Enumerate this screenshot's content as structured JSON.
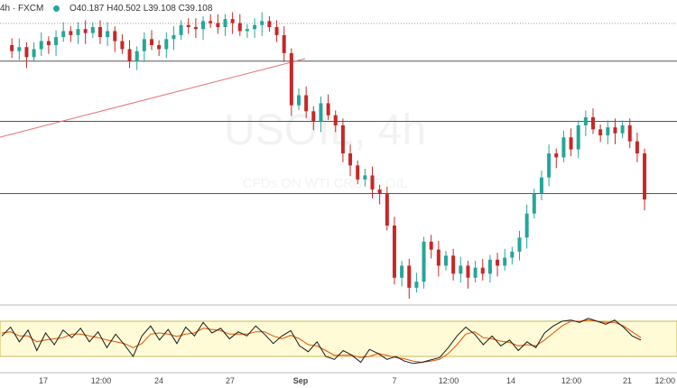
{
  "header": {
    "interval": "4h",
    "source": "FXCM",
    "open": "O40.187",
    "high": "H40.502",
    "low": "L39.108",
    "close": "C39.108"
  },
  "watermark": {
    "symbol": "USOIL, 4h",
    "description": "CFDs ON WTI CRUDE OIL"
  },
  "x_axis": {
    "labels": [
      {
        "text": "17",
        "bold": false
      },
      {
        "text": "12:00",
        "bold": false
      },
      {
        "text": "24",
        "bold": false
      },
      {
        "text": "27",
        "bold": false
      },
      {
        "text": "Sep",
        "bold": true
      },
      {
        "text": "7",
        "bold": false
      },
      {
        "text": "12:00",
        "bold": false
      },
      {
        "text": "14",
        "bold": false
      },
      {
        "text": "12:00",
        "bold": false
      },
      {
        "text": "21",
        "bold": false
      },
      {
        "text": "12:00",
        "bold": false
      }
    ]
  },
  "colors": {
    "up": "#26a69a",
    "down": "#c62828",
    "trendline": "#e57373",
    "hline": "#555555",
    "stoch_k": "#1a1a1a",
    "stoch_d": "#e65100",
    "stoch_band": "#fffbd6",
    "stoch_band_border": "#c8b94a"
  },
  "chart_data": {
    "type": "candlestick",
    "symbol": "USOIL",
    "interval": "4h",
    "price_path": [
      43.1,
      42.95,
      43.05,
      42.8,
      43.0,
      43.2,
      43.1,
      43.3,
      43.45,
      43.35,
      43.5,
      43.4,
      43.55,
      43.3,
      43.45,
      43.2,
      43.0,
      42.7,
      42.95,
      43.25,
      43.1,
      43.0,
      43.25,
      43.35,
      43.6,
      43.55,
      43.5,
      43.7,
      43.65,
      43.55,
      43.75,
      43.65,
      43.45,
      43.5,
      43.6,
      43.7,
      43.55,
      43.35,
      42.9,
      41.6,
      41.85,
      41.45,
      41.2,
      41.65,
      41.35,
      41.1,
      40.4,
      40.1,
      39.75,
      39.85,
      39.5,
      39.4,
      38.6,
      37.3,
      37.6,
      37.05,
      37.2,
      38.2,
      38.0,
      37.6,
      37.85,
      37.4,
      37.6,
      37.3,
      37.55,
      37.4,
      37.75,
      37.6,
      37.8,
      37.95,
      38.3,
      38.9,
      39.4,
      39.8,
      40.4,
      40.3,
      40.8,
      40.5,
      41.1,
      41.3,
      41.0,
      40.85,
      41.05,
      40.9,
      41.1,
      40.7,
      40.4,
      39.25
    ],
    "horizontal_levels": [
      42.7,
      41.2,
      39.4
    ],
    "trendline": "rising support line, drawn from early in the series toward the 27th",
    "stochastic": {
      "k": [
        55,
        70,
        45,
        65,
        30,
        60,
        40,
        65,
        52,
        68,
        45,
        62,
        35,
        58,
        40,
        20,
        55,
        72,
        48,
        66,
        42,
        70,
        55,
        78,
        60,
        68,
        50,
        62,
        55,
        72,
        58,
        42,
        55,
        64,
        38,
        28,
        45,
        20,
        15,
        30,
        22,
        10,
        32,
        25,
        15,
        20,
        12,
        8,
        10,
        14,
        18,
        35,
        55,
        70,
        58,
        40,
        55,
        38,
        48,
        30,
        45,
        35,
        60,
        72,
        80,
        82,
        78,
        85,
        80,
        75,
        82,
        70,
        55,
        48
      ],
      "d": [
        60,
        62,
        55,
        55,
        45,
        48,
        50,
        52,
        58,
        58,
        55,
        52,
        48,
        45,
        42,
        35,
        42,
        58,
        60,
        58,
        54,
        58,
        60,
        68,
        66,
        64,
        58,
        58,
        58,
        62,
        62,
        55,
        50,
        56,
        50,
        40,
        38,
        30,
        22,
        22,
        22,
        18,
        20,
        25,
        22,
        18,
        16,
        12,
        10,
        12,
        15,
        25,
        40,
        58,
        62,
        52,
        50,
        46,
        44,
        38,
        40,
        38,
        48,
        60,
        72,
        80,
        80,
        82,
        80,
        78,
        78,
        72,
        62,
        52
      ],
      "band": [
        80,
        20
      ]
    }
  }
}
